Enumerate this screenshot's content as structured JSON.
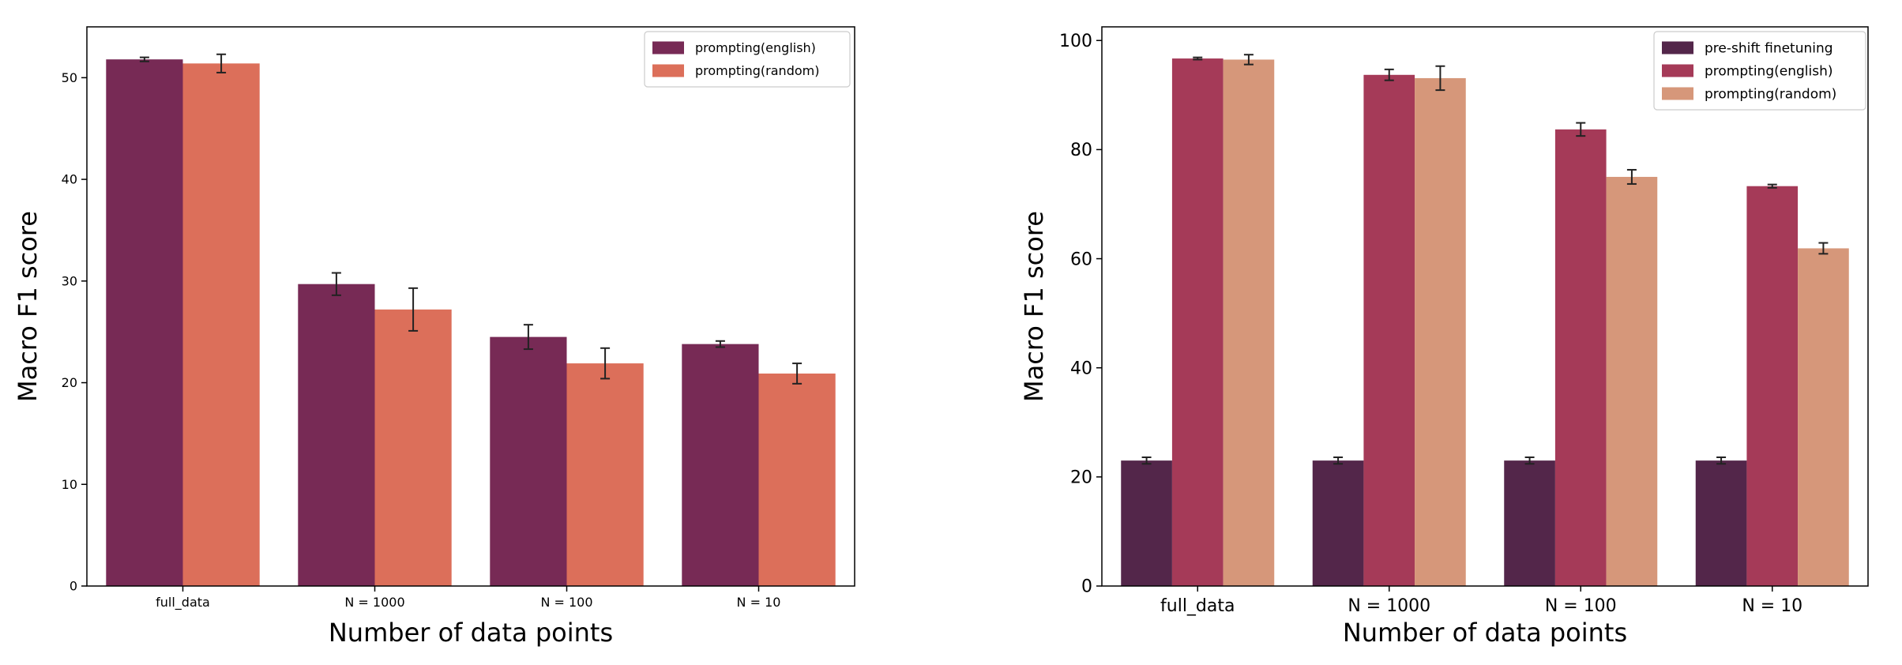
{
  "chart_data": [
    {
      "type": "bar",
      "title": "",
      "xlabel": "Number of data points",
      "ylabel": "Macro F1 score",
      "categories": [
        "full_data",
        "N = 1000",
        "N = 100",
        "N = 10"
      ],
      "ylim": [
        0,
        55
      ],
      "yticks": [
        0,
        10,
        20,
        30,
        40,
        50
      ],
      "legend_position": "top-right",
      "series": [
        {
          "name": "prompting(english)",
          "color": "#772a55",
          "values": [
            51.8,
            29.7,
            24.5,
            23.8
          ],
          "errors": [
            0.2,
            1.1,
            1.2,
            0.3
          ]
        },
        {
          "name": "prompting(random)",
          "color": "#dc6f5a",
          "values": [
            51.4,
            27.2,
            21.9,
            20.9
          ],
          "errors": [
            0.9,
            2.1,
            1.5,
            1.0
          ]
        }
      ]
    },
    {
      "type": "bar",
      "title": "",
      "xlabel": "Number of data points",
      "ylabel": "Macro F1 score",
      "categories": [
        "full_data",
        "N = 1000",
        "N = 100",
        "N = 10"
      ],
      "ylim": [
        0,
        102.5
      ],
      "yticks": [
        0,
        20,
        40,
        60,
        80,
        100
      ],
      "legend_position": "top-right",
      "series": [
        {
          "name": "pre-shift finetuning",
          "color": "#53264a",
          "values": [
            23.0,
            23.0,
            23.0,
            23.0
          ],
          "errors": [
            0.6,
            0.6,
            0.6,
            0.6
          ]
        },
        {
          "name": "prompting(english)",
          "color": "#a53a58",
          "values": [
            96.7,
            93.7,
            83.7,
            73.3
          ],
          "errors": [
            0.2,
            1.0,
            1.2,
            0.3
          ]
        },
        {
          "name": "prompting(random)",
          "color": "#d6977a",
          "values": [
            96.5,
            93.1,
            75.0,
            61.9
          ],
          "errors": [
            0.9,
            2.2,
            1.3,
            1.0
          ]
        }
      ]
    }
  ]
}
